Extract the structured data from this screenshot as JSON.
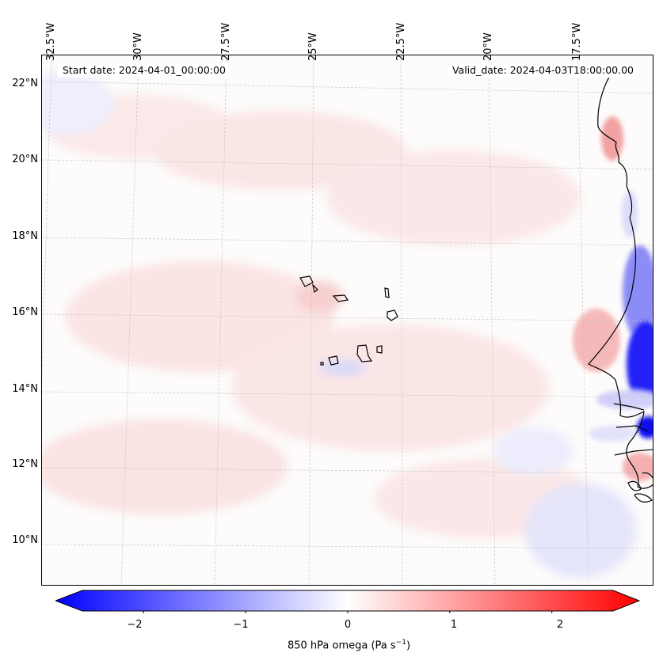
{
  "map": {
    "start_date_label": "Start date: 2024-04-01_00:00:00",
    "valid_date_label": "Valid_date: 2024-04-03T18:00:00.00",
    "lat_labels": [
      "22°N",
      "20°N",
      "18°N",
      "16°N",
      "14°N",
      "12°N",
      "10°N"
    ],
    "lon_labels": [
      "32.5°W",
      "30°W",
      "27.5°W",
      "25°W",
      "22.5°W",
      "20°W",
      "17.5°W"
    ]
  },
  "colorbar": {
    "title": "850 hPa omega (Pa s",
    "title_exp": "−1",
    "title_end": ")",
    "ticks": [
      "−2",
      "−1",
      "0",
      "1",
      "2"
    ],
    "range": [
      -2.6,
      2.6
    ],
    "negative_color": "#0000ff",
    "positive_color": "#ff0000"
  },
  "colors": {
    "coastline": "#000000",
    "gridline": "#c0c0c0"
  }
}
